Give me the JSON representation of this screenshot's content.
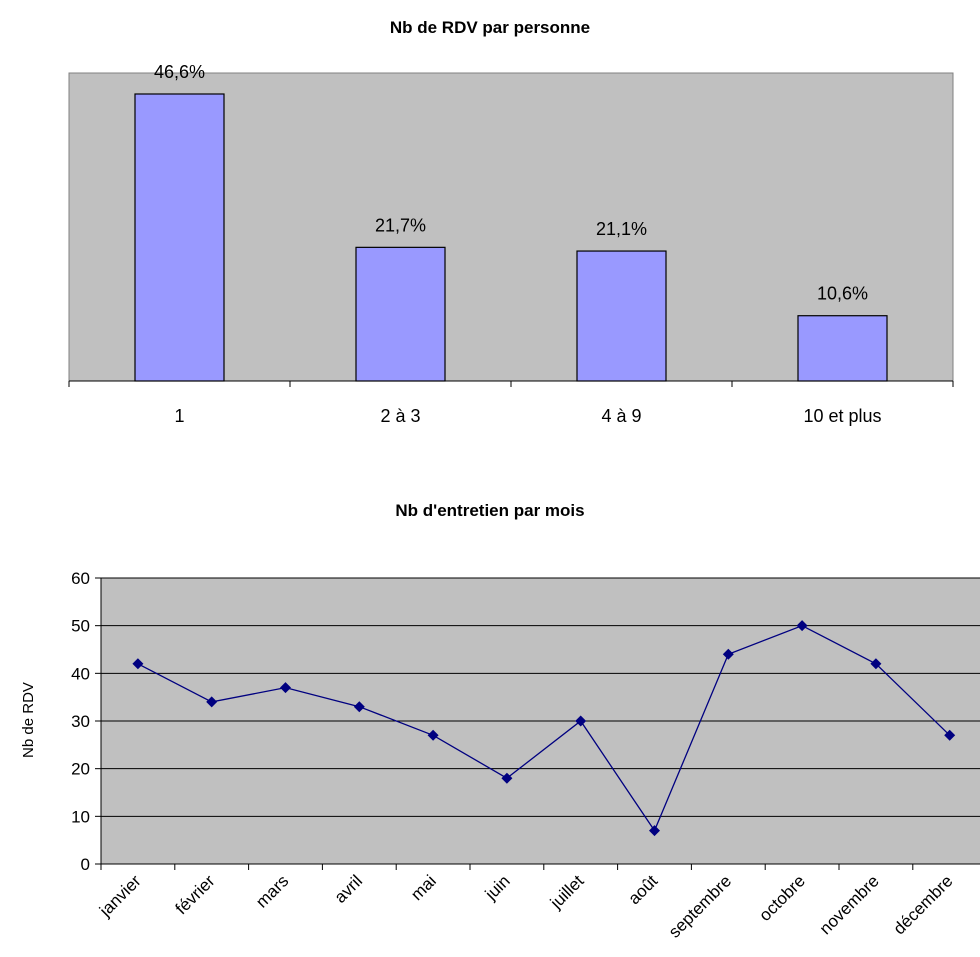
{
  "chart_data": [
    {
      "type": "bar",
      "title": "Nb de RDV par personne",
      "categories": [
        "1",
        "2 à 3",
        "4 à 9",
        "10 et plus"
      ],
      "values": [
        46.6,
        21.7,
        21.1,
        10.6
      ],
      "data_labels": [
        "46,6%",
        "21,7%",
        "21,1%",
        "10,6%"
      ],
      "ylim": [
        0,
        50
      ],
      "grid": false,
      "colors": {
        "plot_bg": "#c0c0c0",
        "bar": "#9999ff",
        "bar_edge": "#000000"
      }
    },
    {
      "type": "line",
      "title": "Nb d'entretien par mois",
      "ylabel": "Nb de RDV",
      "categories": [
        "janvier",
        "février",
        "mars",
        "avril",
        "mai",
        "juin",
        "juillet",
        "août",
        "septembre",
        "octobre",
        "novembre",
        "décembre"
      ],
      "values": [
        42,
        34,
        37,
        33,
        27,
        18,
        30,
        7,
        44,
        50,
        42,
        27
      ],
      "ylim": [
        0,
        60
      ],
      "yticks": [
        "0",
        "10",
        "20",
        "30",
        "40",
        "50",
        "60"
      ],
      "grid": true,
      "colors": {
        "plot_bg": "#c0c0c0",
        "line": "#000080",
        "marker": "#000080"
      }
    }
  ]
}
